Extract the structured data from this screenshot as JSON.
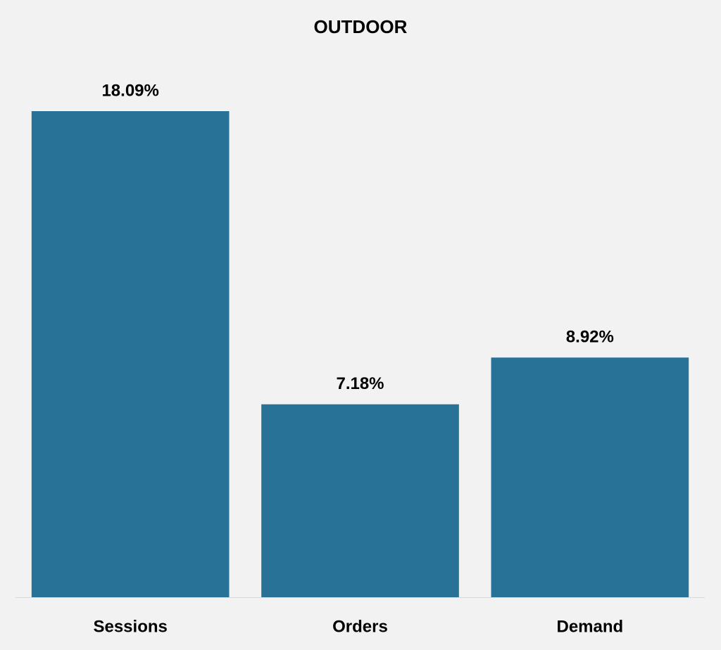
{
  "chart_data": {
    "type": "bar",
    "title": "OUTDOOR",
    "categories": [
      "Sessions",
      "Orders",
      "Demand"
    ],
    "values": [
      18.09,
      7.18,
      8.92
    ],
    "value_labels": [
      "18.09%",
      "7.18%",
      "8.92%"
    ],
    "color": "#277296"
  }
}
